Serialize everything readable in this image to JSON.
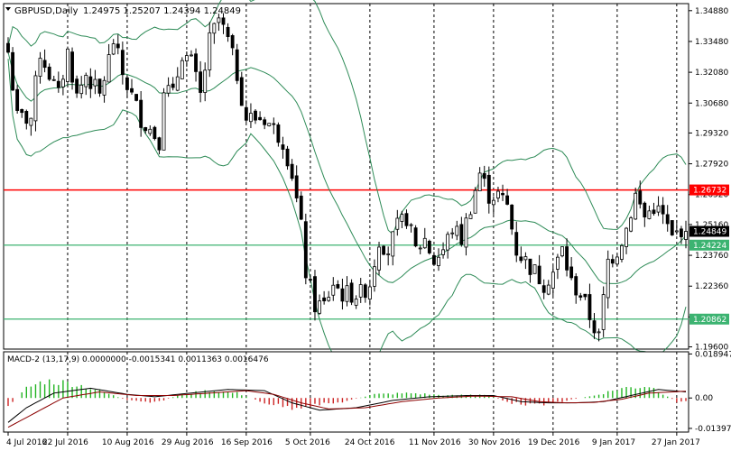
{
  "chart_data": [
    {
      "type": "candlestick",
      "title": "GBPUSD,Daily",
      "ohlc_header": "1.24975 1.25207 1.24394 1.24849",
      "y_ticks": [
        "1.34880",
        "1.33480",
        "1.32080",
        "1.30680",
        "1.29320",
        "1.27920",
        "1.26520",
        "1.25160",
        "1.23760",
        "1.22360",
        "1.20960",
        "1.19600"
      ],
      "ylim": [
        1.195,
        1.352
      ],
      "x_ticks": [
        "4 Jul 2016",
        "22 Jul 2016",
        "10 Aug 2016",
        "29 Aug 2016",
        "16 Sep 2016",
        "5 Oct 2016",
        "24 Oct 2016",
        "11 Nov 2016",
        "30 Nov 2016",
        "19 Dec 2016",
        "9 Jan 2017",
        "27 Jan 2017"
      ],
      "hlines": [
        {
          "value": 1.26732,
          "label": "1.26732",
          "color": "#ff0000"
        },
        {
          "value": 1.24224,
          "label": "1.24224",
          "color": "#3cb371"
        },
        {
          "value": 1.20862,
          "label": "1.20862",
          "color": "#3cb371"
        }
      ],
      "current_price": {
        "value": 1.24849,
        "label": "1.24849"
      },
      "overlays": [
        "Bollinger Bands"
      ],
      "bull_color": "#ffffff",
      "bear_color": "#000000",
      "band_color": "#2e8b57",
      "close_anchors": [
        [
          0,
          1.33
        ],
        [
          2,
          1.3
        ],
        [
          5,
          1.3
        ],
        [
          7,
          1.33
        ],
        [
          9,
          1.32
        ],
        [
          11,
          1.31
        ],
        [
          13,
          1.33
        ],
        [
          15,
          1.31
        ],
        [
          17,
          1.32
        ],
        [
          20,
          1.31
        ],
        [
          23,
          1.335
        ],
        [
          25,
          1.32
        ],
        [
          27,
          1.31
        ],
        [
          29,
          1.3
        ],
        [
          31,
          1.295
        ],
        [
          33,
          1.29
        ],
        [
          34,
          1.315
        ],
        [
          36,
          1.31
        ],
        [
          38,
          1.33
        ],
        [
          40,
          1.325
        ],
        [
          42,
          1.31
        ],
        [
          44,
          1.335
        ],
        [
          46,
          1.345
        ],
        [
          48,
          1.335
        ],
        [
          50,
          1.32
        ],
        [
          52,
          1.3
        ],
        [
          54,
          1.3
        ],
        [
          56,
          1.3
        ],
        [
          58,
          1.295
        ],
        [
          60,
          1.29
        ],
        [
          62,
          1.275
        ],
        [
          64,
          1.25
        ],
        [
          65,
          1.23
        ],
        [
          67,
          1.215
        ],
        [
          69,
          1.215
        ],
        [
          71,
          1.225
        ],
        [
          73,
          1.22
        ],
        [
          75,
          1.22
        ],
        [
          77,
          1.22
        ],
        [
          79,
          1.225
        ],
        [
          81,
          1.245
        ],
        [
          83,
          1.24
        ],
        [
          85,
          1.25
        ],
        [
          87,
          1.255
        ],
        [
          89,
          1.24
        ],
        [
          91,
          1.245
        ],
        [
          93,
          1.235
        ],
        [
          95,
          1.24
        ],
        [
          97,
          1.25
        ],
        [
          99,
          1.245
        ],
        [
          101,
          1.26
        ],
        [
          103,
          1.275
        ],
        [
          105,
          1.265
        ],
        [
          107,
          1.265
        ],
        [
          109,
          1.26
        ],
        [
          111,
          1.24
        ],
        [
          113,
          1.235
        ],
        [
          115,
          1.23
        ],
        [
          117,
          1.225
        ],
        [
          119,
          1.23
        ],
        [
          121,
          1.24
        ],
        [
          123,
          1.225
        ],
        [
          125,
          1.22
        ],
        [
          127,
          1.21
        ],
        [
          129,
          1.2
        ],
        [
          131,
          1.235
        ],
        [
          133,
          1.24
        ],
        [
          135,
          1.25
        ],
        [
          137,
          1.265
        ],
        [
          139,
          1.255
        ],
        [
          141,
          1.26
        ],
        [
          143,
          1.255
        ],
        [
          145,
          1.245
        ],
        [
          147,
          1.25
        ],
        [
          148,
          1.2485
        ]
      ],
      "candle_count": 149
    },
    {
      "type": "histogram",
      "title": "MACD-2 (13,17,9) 0.0000000 -0.0015341 0.0011363 0.0016476",
      "y_ticks": [
        "0.00"
      ],
      "top_label": "0.018947",
      "bottom_label": "-0.013970",
      "ylim": [
        -0.01397,
        0.018947
      ],
      "positive_color": "#22b422",
      "negative_color": "#cc2222",
      "line_colors": [
        "#000000",
        "#8b0000"
      ],
      "histogram_anchors": [
        [
          0,
          -0.004
        ],
        [
          4,
          0.004
        ],
        [
          8,
          0.007
        ],
        [
          14,
          0.006
        ],
        [
          20,
          0.003
        ],
        [
          26,
          -0.001
        ],
        [
          32,
          -0.002
        ],
        [
          38,
          0.0015
        ],
        [
          44,
          0.003
        ],
        [
          50,
          0.002
        ],
        [
          56,
          -0.002
        ],
        [
          62,
          -0.004
        ],
        [
          66,
          -0.003
        ],
        [
          72,
          -0.002
        ],
        [
          80,
          0.0015
        ],
        [
          88,
          0.002
        ],
        [
          96,
          0.001
        ],
        [
          104,
          0.0015
        ],
        [
          110,
          -0.002
        ],
        [
          116,
          -0.003
        ],
        [
          122,
          -0.001
        ],
        [
          128,
          0.001
        ],
        [
          134,
          0.004
        ],
        [
          140,
          0.005
        ],
        [
          146,
          -0.0015
        ],
        [
          148,
          -0.0015
        ]
      ],
      "macd_anchors": [
        [
          0,
          -0.01
        ],
        [
          4,
          -0.004
        ],
        [
          10,
          0.002
        ],
        [
          18,
          0.004
        ],
        [
          26,
          0.0015
        ],
        [
          32,
          0.0005
        ],
        [
          40,
          0.002
        ],
        [
          48,
          0.0035
        ],
        [
          56,
          0.003
        ],
        [
          62,
          -0.002
        ],
        [
          68,
          -0.005
        ],
        [
          76,
          -0.004
        ],
        [
          84,
          -0.001
        ],
        [
          92,
          0.0005
        ],
        [
          100,
          0.001
        ],
        [
          106,
          0.001
        ],
        [
          112,
          -0.0015
        ],
        [
          118,
          -0.002
        ],
        [
          124,
          -0.002
        ],
        [
          130,
          -0.0015
        ],
        [
          136,
          0.001
        ],
        [
          142,
          0.0035
        ],
        [
          148,
          0.0025
        ]
      ],
      "signal_anchors": [
        [
          0,
          -0.012
        ],
        [
          6,
          -0.006
        ],
        [
          12,
          0.0
        ],
        [
          20,
          0.0025
        ],
        [
          28,
          0.001
        ],
        [
          36,
          0.001
        ],
        [
          44,
          0.002
        ],
        [
          52,
          0.003
        ],
        [
          58,
          0.0015
        ],
        [
          64,
          -0.002
        ],
        [
          70,
          -0.0045
        ],
        [
          78,
          -0.004
        ],
        [
          86,
          -0.0015
        ],
        [
          94,
          0.0
        ],
        [
          102,
          0.0008
        ],
        [
          110,
          0.0005
        ],
        [
          116,
          -0.0015
        ],
        [
          122,
          -0.002
        ],
        [
          128,
          -0.0018
        ],
        [
          134,
          -0.0005
        ],
        [
          140,
          0.002
        ],
        [
          148,
          0.0028
        ]
      ]
    }
  ]
}
